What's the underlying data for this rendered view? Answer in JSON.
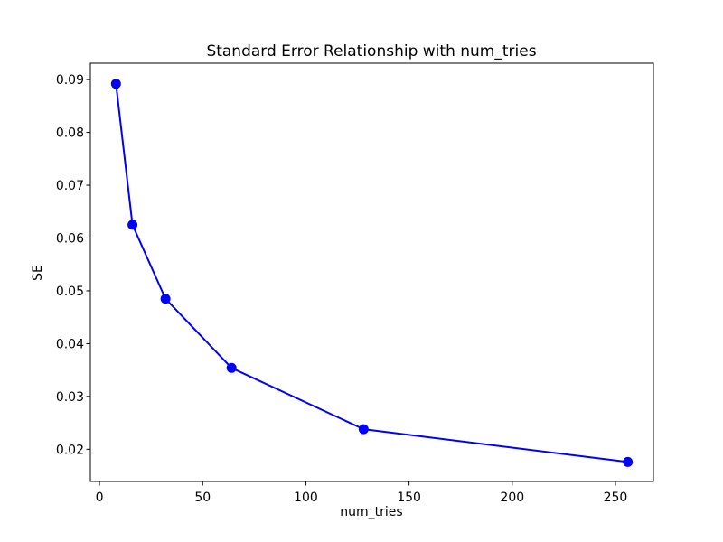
{
  "figure": {
    "background": "#ffffff"
  },
  "chart_data": {
    "type": "line",
    "title": "Standard Error Relationship with num_tries",
    "xlabel": "num_tries",
    "ylabel": "SE",
    "series": [
      {
        "name": "SE",
        "x": [
          8,
          16,
          32,
          64,
          128,
          256
        ],
        "y": [
          0.0892,
          0.0625,
          0.0485,
          0.0354,
          0.0238,
          0.0176
        ],
        "color": "#0000ff",
        "marker": "circle",
        "line_width": 2,
        "marker_radius": 5.5
      }
    ],
    "xlim": [
      -4.4,
      268.4
    ],
    "ylim": [
      0.0139,
      0.0931
    ],
    "x_ticks": [
      0,
      50,
      100,
      150,
      200,
      250
    ],
    "y_ticks": [
      0.02,
      0.03,
      0.04,
      0.05,
      0.06,
      0.07,
      0.08,
      0.09
    ],
    "y_tick_decimals": 2,
    "grid": false,
    "legend": "none",
    "axis_color": "#000000",
    "text_color": "#000000"
  }
}
